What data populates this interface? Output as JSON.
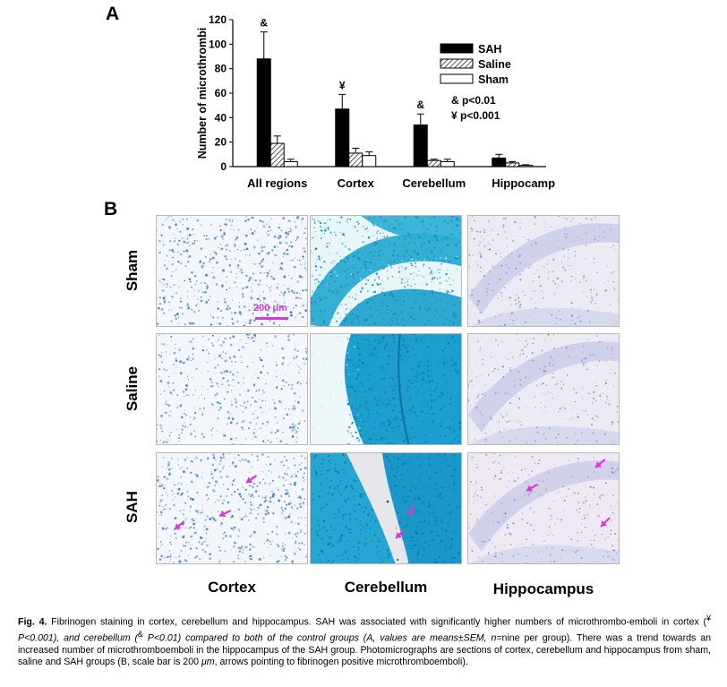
{
  "panel_a_label": "A",
  "panel_b_label": "B",
  "chart_data": {
    "type": "bar",
    "categories": [
      "All regions",
      "Cortex",
      "Cerebellum",
      "Hippocampus"
    ],
    "series": [
      {
        "name": "SAH",
        "values": [
          88,
          47,
          34,
          7
        ],
        "errors": [
          22,
          12,
          9,
          3
        ],
        "color": "#000000",
        "fill": "solid"
      },
      {
        "name": "Saline",
        "values": [
          19,
          11,
          5,
          3
        ],
        "errors": [
          6,
          4,
          1,
          1
        ],
        "color": "#000000",
        "fill": "hatched"
      },
      {
        "name": "Sham",
        "values": [
          4,
          9,
          4,
          1
        ],
        "errors": [
          2,
          3,
          2,
          0.5
        ],
        "color": "#ffffff",
        "fill": "open"
      }
    ],
    "significance": [
      "&",
      "¥",
      "&",
      ""
    ],
    "ylabel": "Number of microthrombi",
    "yticks": [
      0,
      20,
      40,
      60,
      80,
      100,
      120
    ],
    "ylim": [
      0,
      120
    ],
    "legend_notes": [
      "& p<0.01",
      "¥ p<0.001"
    ],
    "legend_position": "top-right"
  },
  "micrographs": {
    "rows": [
      "Sham",
      "Saline",
      "SAH"
    ],
    "columns": [
      "Cortex",
      "Cerebellum",
      "Hippocampus"
    ],
    "scale_bar_label": "200 μm",
    "arrow_color": "#d63ad6"
  },
  "caption": {
    "label": "Fig. 4.",
    "text_1": "Fibrinogen staining in cortex, cerebellum and hippocampus. SAH was associated with significantly higher numbers of microthrombo-emboli in cortex (",
    "mark_1": "¥",
    "p_1": " P<0.001), and cerebellum (",
    "mark_2": "&",
    "p_2": " P<0.01) compared to both of the control groups (A, values are means±SEM, ",
    "n_text": "n",
    "text_2": "=nine per group). There was a trend towards an increased number of microthromboemboli in the hippocampus of the SAH group. Photomicrographs are sections of cortex, cerebellum and hippocampus from sham, saline and SAH groups (B, scale bar is 200 ",
    "mu": "μm",
    "text_3": ", arrows pointing to fibrinogen positive microthromboemboli)."
  }
}
